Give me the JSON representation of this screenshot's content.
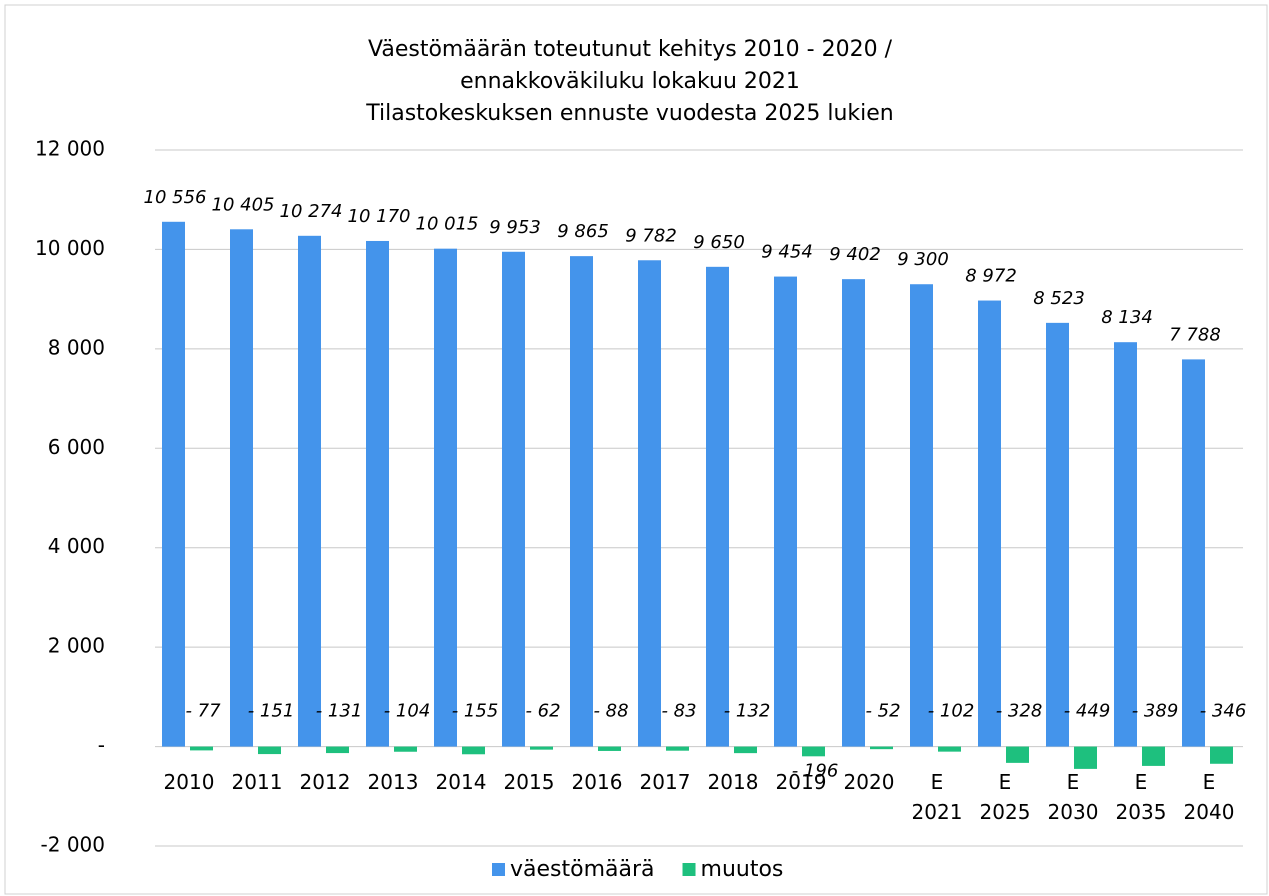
{
  "chart_data": {
    "type": "bar",
    "title": [
      "Väestömäärän toteutunut kehitys 2010 - 2020 /",
      "ennakkoväkiluku lokakuu 2021",
      "Tilastokeskuksen ennuste vuodesta 2025 lukien"
    ],
    "categories": [
      "2010",
      "2011",
      "2012",
      "2013",
      "2014",
      "2015",
      "2016",
      "2017",
      "2018",
      "2019",
      "2020",
      "E\n2021",
      "E\n2025",
      "E\n2030",
      "E\n2035",
      "E\n2040"
    ],
    "series": [
      {
        "name": "väestömäärä",
        "color": "#4494eb",
        "values": [
          10556,
          10405,
          10274,
          10170,
          10015,
          9953,
          9865,
          9782,
          9650,
          9454,
          9402,
          9300,
          8972,
          8523,
          8134,
          7788
        ],
        "value_labels": [
          "10 556",
          "10 405",
          "10 274",
          "10 170",
          "10 015",
          "9 953",
          "9 865",
          "9 782",
          "9 650",
          "9 454",
          "9 402",
          "9 300",
          "8 972",
          "8 523",
          "8 134",
          "7 788"
        ]
      },
      {
        "name": "muutos",
        "color": "#1ec07e",
        "values": [
          -77,
          -151,
          -131,
          -104,
          -155,
          -62,
          -88,
          -83,
          -132,
          -196,
          -52,
          -102,
          -328,
          -449,
          -389,
          -346
        ],
        "value_labels": [
          "- 77",
          "- 151",
          "- 131",
          "- 104",
          "- 155",
          "- 62",
          "- 88",
          "- 83",
          "- 132",
          "- 196",
          "- 52",
          "- 102",
          "- 328",
          "- 449",
          "- 389",
          "- 346"
        ]
      }
    ],
    "ylim": [
      -2000,
      12000
    ],
    "yticks": [
      {
        "value": -2000,
        "label": "-2 000"
      },
      {
        "value": 0,
        "label": "-"
      },
      {
        "value": 2000,
        "label": "2 000"
      },
      {
        "value": 4000,
        "label": "4 000"
      },
      {
        "value": 6000,
        "label": "6 000"
      },
      {
        "value": 8000,
        "label": "8 000"
      },
      {
        "value": 10000,
        "label": "10 000"
      },
      {
        "value": 12000,
        "label": "12 000"
      }
    ],
    "grid": true,
    "legend": "bottom"
  }
}
